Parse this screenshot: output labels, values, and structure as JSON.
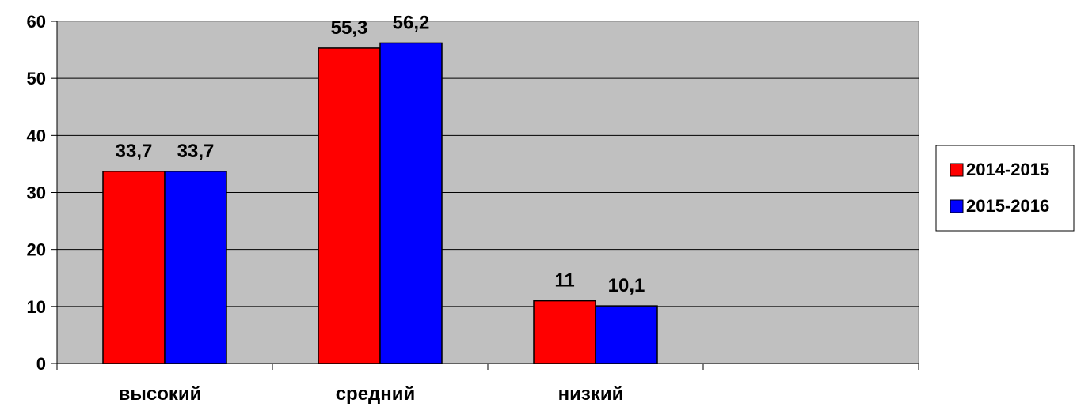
{
  "chart_data": {
    "type": "bar",
    "categories": [
      "высокий",
      "средний",
      "низкий",
      ""
    ],
    "series": [
      {
        "name": "2014-2015",
        "values": [
          33.7,
          55.3,
          11,
          null
        ],
        "labels": [
          "33,7",
          "55,3",
          "11",
          ""
        ],
        "color": "#ff0000"
      },
      {
        "name": "2015-2016",
        "values": [
          33.7,
          56.2,
          10.1,
          null
        ],
        "labels": [
          "33,7",
          "56,2",
          "10,1",
          ""
        ],
        "color": "#0000ff"
      }
    ],
    "y_ticks": [
      "0",
      "10",
      "20",
      "30",
      "40",
      "50",
      "60"
    ],
    "ylim": [
      0,
      60
    ],
    "grid": true,
    "plot_background": "#c0c0c0",
    "legend_position": "right"
  }
}
